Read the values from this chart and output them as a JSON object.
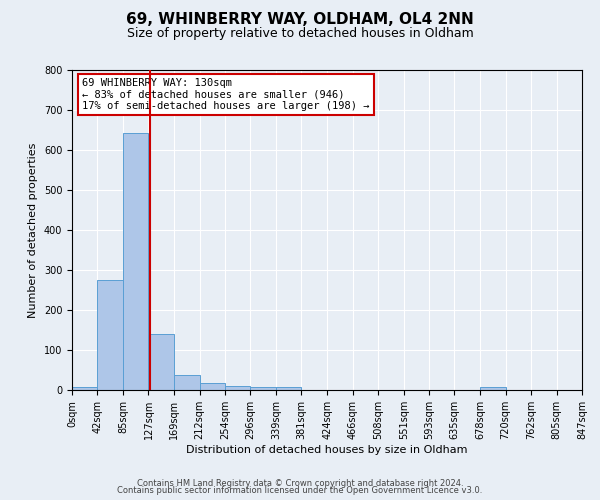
{
  "title": "69, WHINBERRY WAY, OLDHAM, OL4 2NN",
  "subtitle": "Size of property relative to detached houses in Oldham",
  "xlabel": "Distribution of detached houses by size in Oldham",
  "ylabel": "Number of detached properties",
  "bin_edges": [
    0,
    42,
    85,
    127,
    169,
    212,
    254,
    296,
    339,
    381,
    424,
    466,
    508,
    551,
    593,
    635,
    678,
    720,
    762,
    805,
    847
  ],
  "bar_heights": [
    7,
    275,
    643,
    140,
    38,
    18,
    10,
    7,
    8,
    0,
    0,
    0,
    0,
    0,
    0,
    0,
    8,
    0,
    0,
    0
  ],
  "bar_color": "#aec6e8",
  "bar_edge_color": "#5a9fd4",
  "property_size": 130,
  "vline_color": "#cc0000",
  "annotation_text": "69 WHINBERRY WAY: 130sqm\n← 83% of detached houses are smaller (946)\n17% of semi-detached houses are larger (198) →",
  "annotation_box_color": "#ffffff",
  "annotation_box_edge_color": "#cc0000",
  "ylim": [
    0,
    800
  ],
  "yticks": [
    0,
    100,
    200,
    300,
    400,
    500,
    600,
    700,
    800
  ],
  "tick_labels": [
    "0sqm",
    "42sqm",
    "85sqm",
    "127sqm",
    "169sqm",
    "212sqm",
    "254sqm",
    "296sqm",
    "339sqm",
    "381sqm",
    "424sqm",
    "466sqm",
    "508sqm",
    "551sqm",
    "593sqm",
    "635sqm",
    "678sqm",
    "720sqm",
    "762sqm",
    "805sqm",
    "847sqm"
  ],
  "footer1": "Contains HM Land Registry data © Crown copyright and database right 2024.",
  "footer2": "Contains public sector information licensed under the Open Government Licence v3.0.",
  "bg_color": "#e8eef5",
  "grid_color": "#ffffff",
  "title_fontsize": 11,
  "subtitle_fontsize": 9,
  "label_fontsize": 8,
  "tick_fontsize": 7,
  "footer_fontsize": 6
}
